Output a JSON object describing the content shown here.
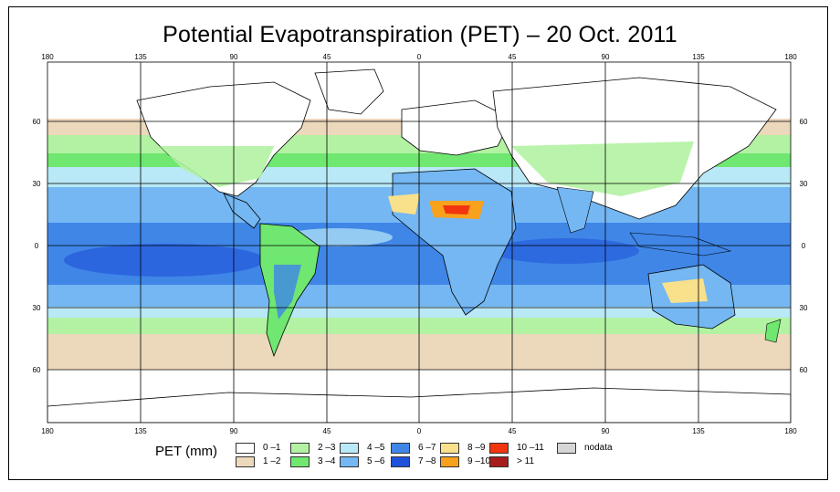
{
  "title": "Potential Evapotranspiration (PET) – 20 Oct. 2011",
  "top_ticks": [
    "180",
    "135",
    "90",
    "45",
    "0",
    "45",
    "90",
    "135",
    "180"
  ],
  "bottom_ticks": [
    "180",
    "135",
    "90",
    "45",
    "0",
    "45",
    "90",
    "135",
    "180"
  ],
  "left_ticks": [
    "60",
    "30",
    "0",
    "30",
    "60"
  ],
  "right_ticks": [
    "60",
    "30",
    "0",
    "30",
    "60"
  ],
  "legend": {
    "title": "PET (mm)",
    "items": [
      {
        "label": "0 –1",
        "color": "#ffffff"
      },
      {
        "label": "1 –2",
        "color": "#ecd8bb"
      },
      {
        "label": "2 –3",
        "color": "#b2f2a2"
      },
      {
        "label": "3 –4",
        "color": "#6fe770"
      },
      {
        "label": "4 –5",
        "color": "#b9e8f7"
      },
      {
        "label": "5 –6",
        "color": "#74b7f2"
      },
      {
        "label": "6 –7",
        "color": "#3f86e7"
      },
      {
        "label": "7 –8",
        "color": "#1f52d8"
      },
      {
        "label": "8 –9",
        "color": "#f9e08b"
      },
      {
        "label": "9 –10",
        "color": "#f7a11c"
      },
      {
        "label": "10 –11",
        "color": "#f1350f"
      },
      {
        "label": "> 11",
        "color": "#a71c1c"
      },
      {
        "label": "nodata",
        "color": "#d6d6d6"
      }
    ]
  },
  "colors": {
    "ocean_bg": "#74b7f2",
    "border": "#000000",
    "grid": "#000000"
  }
}
